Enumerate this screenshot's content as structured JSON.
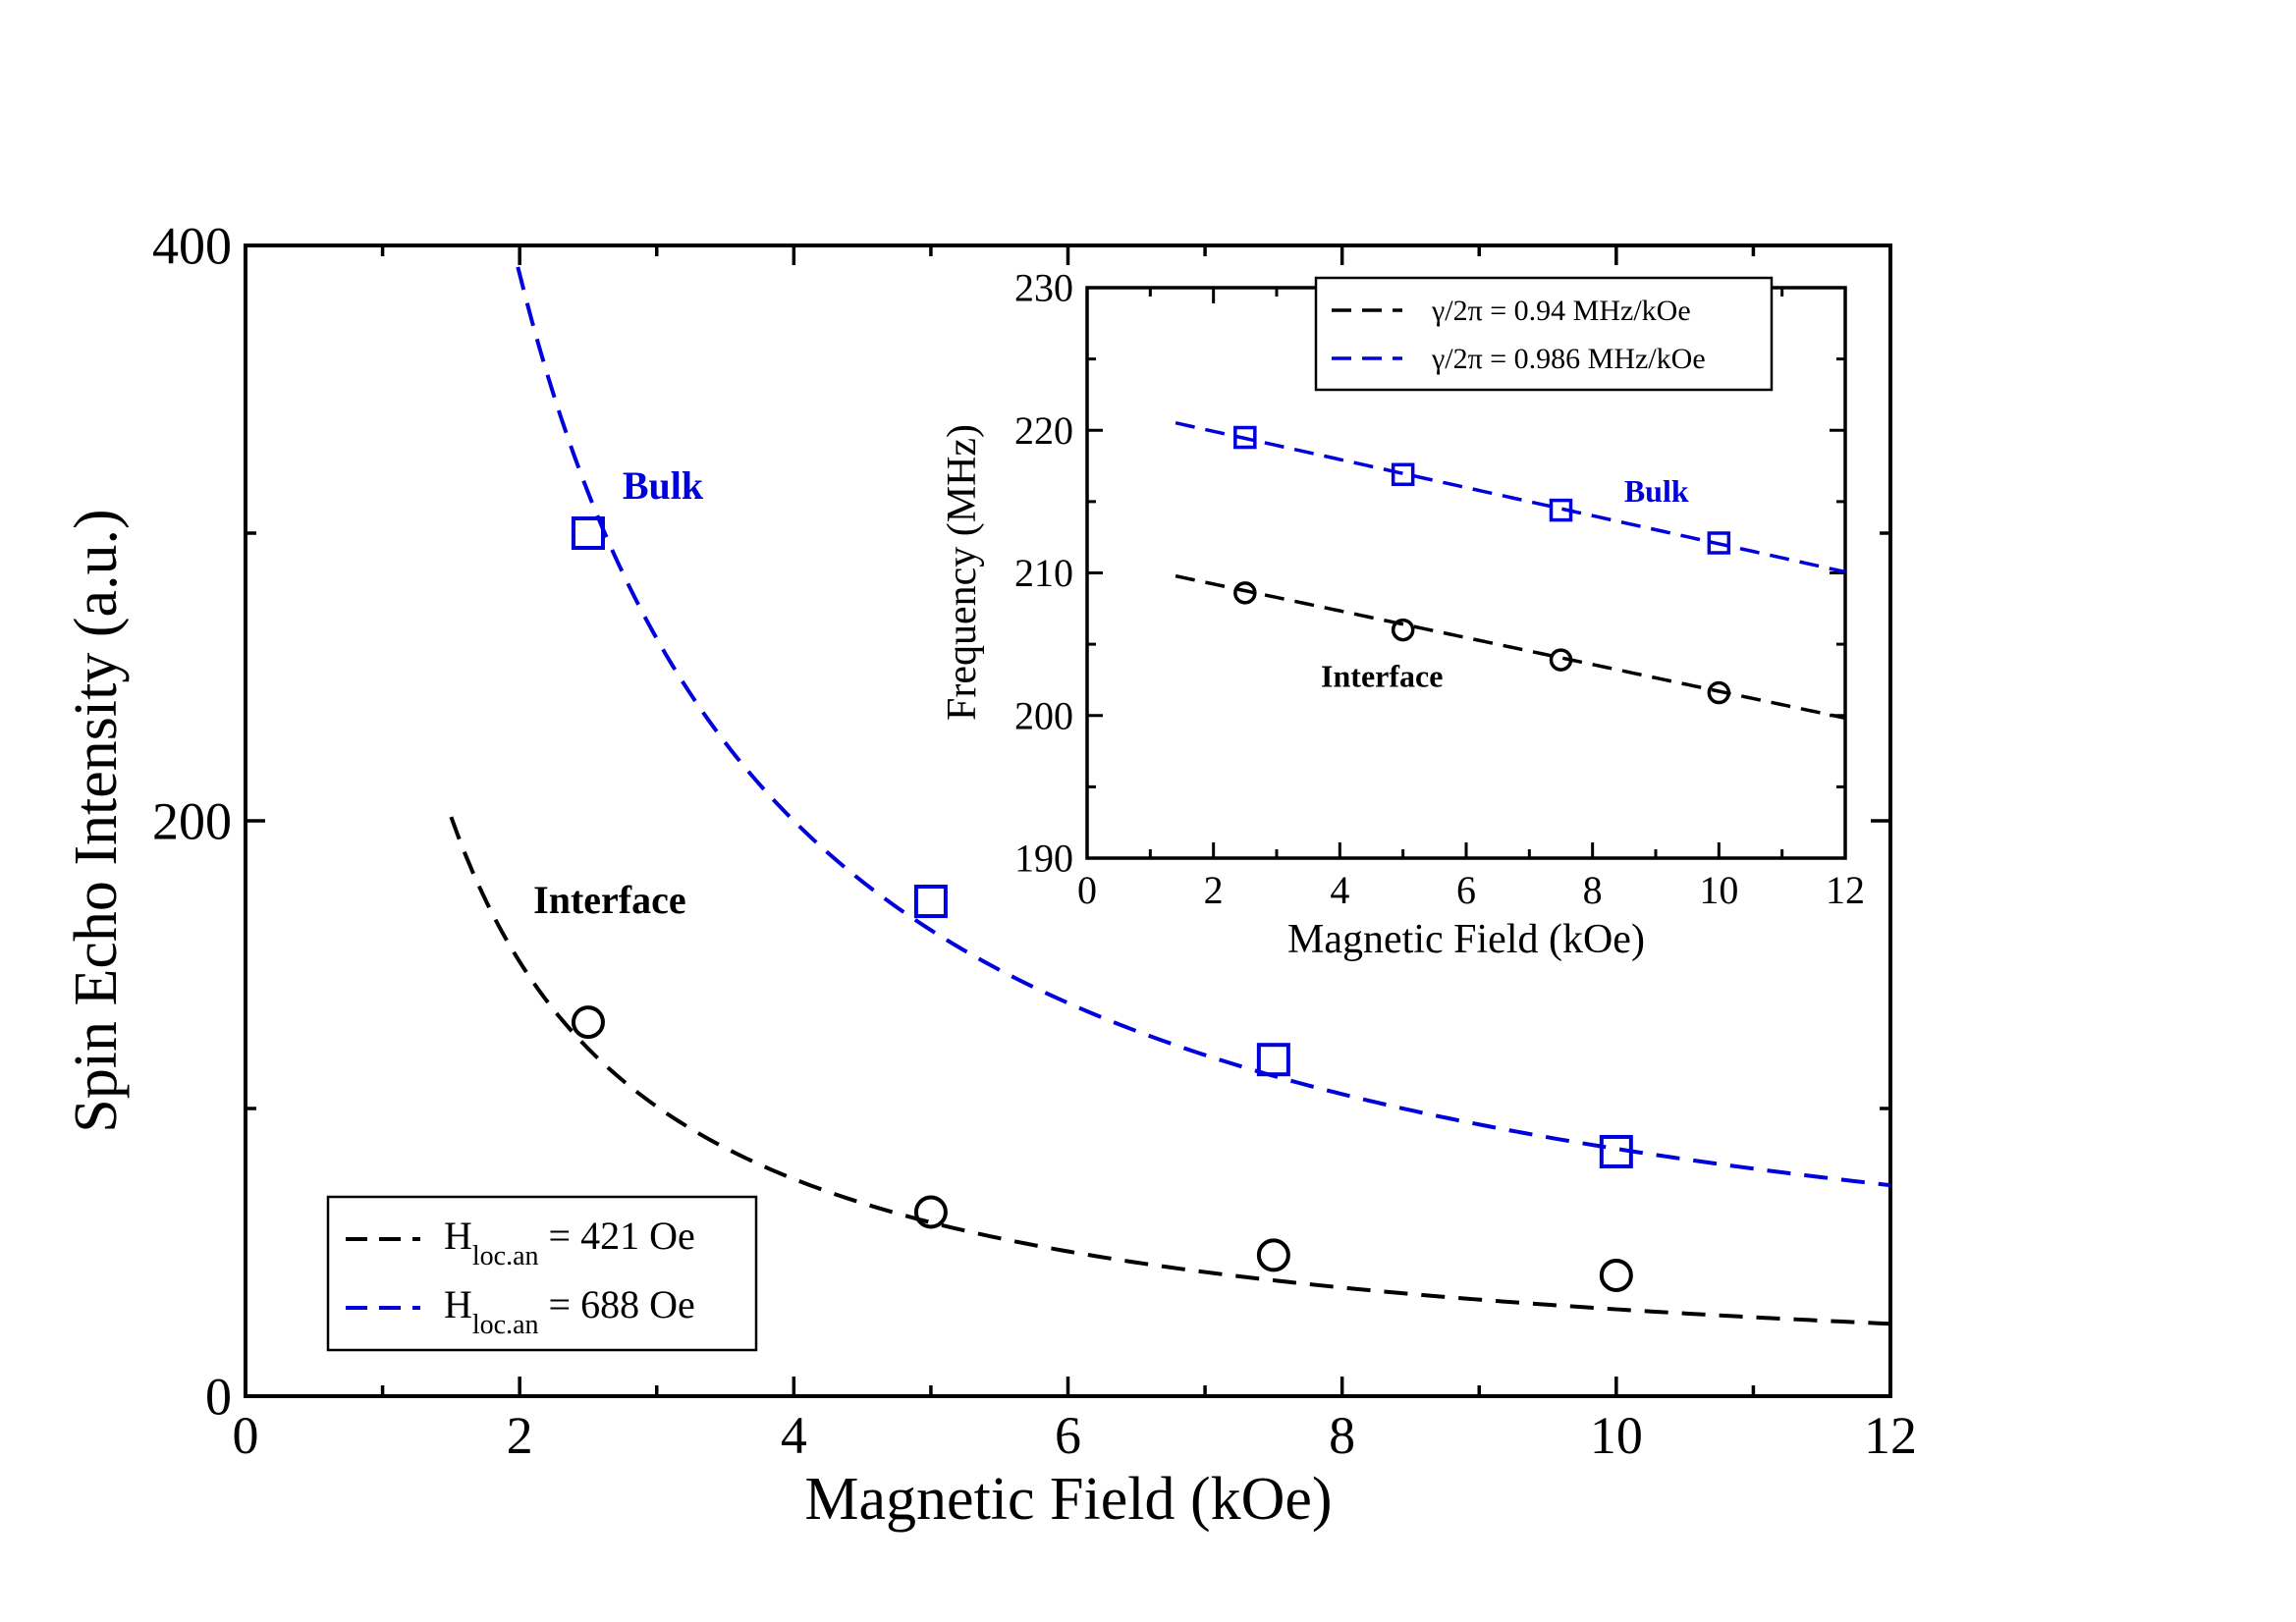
{
  "chart_data": [
    {
      "type": "scatter",
      "title": "",
      "xlabel": "Magnetic Field (kOe)",
      "ylabel": "Spin Echo Intensity (a.u.)",
      "xlim": [
        0,
        12
      ],
      "ylim": [
        0,
        400
      ],
      "x_ticks": [
        "0",
        "2",
        "4",
        "6",
        "8",
        "10",
        "12"
      ],
      "y_ticks": [
        "0",
        "200",
        "400"
      ],
      "grid": false,
      "legend_position": "bottom-left",
      "legend": [
        {
          "base": "H",
          "sub": "loc.an",
          "rest": " = 421 Oe",
          "color": "#000000"
        },
        {
          "base": "H",
          "sub": "loc.an",
          "rest": " = 688 Oe",
          "color": "#0000dd"
        }
      ],
      "annotations": [
        {
          "text": "Bulk",
          "color": "#0000dd",
          "x": 2.75,
          "y": 312
        },
        {
          "text": "Interface",
          "color": "#000000",
          "x": 2.1,
          "y": 168
        }
      ],
      "series": [
        {
          "color": "#000000",
          "marker": "circle",
          "points": [
            {
              "x": 2.5,
              "y": 130
            },
            {
              "x": 5,
              "y": 64
            },
            {
              "x": 7.5,
              "y": 49
            },
            {
              "x": 10,
              "y": 42
            }
          ],
          "fit": {
            "kind": "hyperbola",
            "a": 302,
            "b": 0,
            "xmin": 1.5,
            "xmax": 12
          }
        },
        {
          "color": "#0000dd",
          "marker": "square",
          "points": [
            {
              "x": 2.5,
              "y": 300
            },
            {
              "x": 5,
              "y": 172
            },
            {
              "x": 7.5,
              "y": 117
            },
            {
              "x": 10,
              "y": 85
            }
          ],
          "fit": {
            "kind": "hyperbola",
            "a": 760,
            "b": 10,
            "xmin": 1.73,
            "xmax": 12
          }
        }
      ]
    },
    {
      "type": "scatter",
      "title": "",
      "xlabel": "Magnetic Field (kOe)",
      "ylabel": "Frequency (MHz)",
      "xlim": [
        0,
        12
      ],
      "ylim": [
        190,
        230
      ],
      "x_ticks": [
        "0",
        "2",
        "4",
        "6",
        "8",
        "10",
        "12"
      ],
      "y_ticks": [
        "190",
        "200",
        "210",
        "220",
        "230"
      ],
      "grid": false,
      "legend_position": "top-right",
      "legend": [
        {
          "text": "γ/2π = 0.94 MHz/kOe",
          "color": "#000000"
        },
        {
          "text": "γ/2π = 0.986 MHz/kOe",
          "color": "#0000dd"
        }
      ],
      "annotations": [
        {
          "text": "Bulk",
          "color": "#0000dd",
          "x": 8.5,
          "y": 215
        },
        {
          "text": "Interface",
          "color": "#000000",
          "x": 3.7,
          "y": 202
        }
      ],
      "series": [
        {
          "color": "#000000",
          "marker": "circle",
          "points": [
            {
              "x": 2.5,
              "y": 208.6
            },
            {
              "x": 5,
              "y": 206.0
            },
            {
              "x": 7.5,
              "y": 203.9
            },
            {
              "x": 10,
              "y": 201.6
            }
          ],
          "fit": {
            "kind": "linear",
            "slope": -0.94,
            "intercept": 211.1,
            "xmin": 1.4,
            "xmax": 12
          }
        },
        {
          "color": "#0000dd",
          "marker": "square",
          "points": [
            {
              "x": 2.5,
              "y": 219.5
            },
            {
              "x": 5,
              "y": 216.9
            },
            {
              "x": 7.5,
              "y": 214.4
            },
            {
              "x": 10,
              "y": 212.1
            }
          ],
          "fit": {
            "kind": "linear",
            "slope": -0.986,
            "intercept": 221.9,
            "xmin": 1.4,
            "xmax": 12
          }
        }
      ]
    }
  ]
}
